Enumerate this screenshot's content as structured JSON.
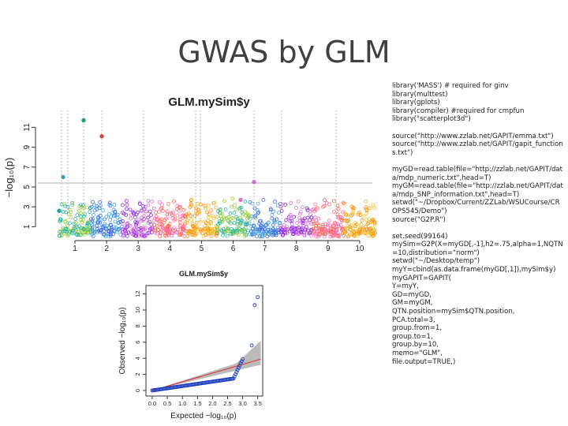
{
  "title": "GWAS by GLM",
  "manhattan": {
    "title": "GLM.mySim$y",
    "ylabel": "−log₁₀(p)",
    "yticks": [
      1,
      3,
      5,
      7,
      9,
      11
    ],
    "xticks": [
      1,
      2,
      3,
      4,
      5,
      6,
      7,
      8,
      9,
      10
    ]
  },
  "qq": {
    "title": "GLM.mySim$y",
    "xlabel": "Expected −log₁₀(p)",
    "ylabel": "Observed −log₁₀(p)",
    "xticks": [
      "0.0",
      "0.5",
      "1.0",
      "1.5",
      "2.0",
      "2.5",
      "3.0",
      "3.5"
    ],
    "yticks": [
      0,
      2,
      4,
      6,
      8,
      10,
      12
    ]
  },
  "code": [
    [
      "library('MASS') # required for ginv",
      "library(multtest)",
      "library(gplots)",
      "library(compiler) #required for cmpfun",
      "library(\"scatterplot3d\")"
    ],
    [
      "source(\"http://www.zzlab.net/GAPIT/emma.txt\")",
      "source(\"http://www.zzlab.net/GAPIT/gapit_functions.txt\")"
    ],
    [
      "myGD=read.table(file=\"http://zzlab.net/GAPIT/data/mdp_numeric.txt\",head=T)",
      "myGM=read.table(file=\"http://zzlab.net/GAPIT/data/mdp_SNP_information.txt\",head=T)",
      "setwd(\"~/Dropbox/Current/ZZLab/WSUCourse/CROPS545/Demo\")",
      "source(\"G2P.R\")"
    ],
    [
      "set.seed(99164)",
      "mySim=G2P(X=myGD[,-1],h2=.75,alpha=1,NQTN=10,distribution=\"norm\")",
      "setwd(\"~/Desktop/temp\")",
      "myY=cbind(as.data.frame(myGD[,1]),mySim$y)",
      "myGAPIT=GAPIT(",
      "Y=myY,",
      "GD=myGD,",
      "GM=myGM,",
      "QTN.position=mySim$QTN.position,",
      "PCA.total=3,",
      "group.from=1,",
      "group.to=1,",
      "group.by=10,",
      "memo=\"GLM\",",
      "file.output=TRUE,)"
    ]
  ]
}
